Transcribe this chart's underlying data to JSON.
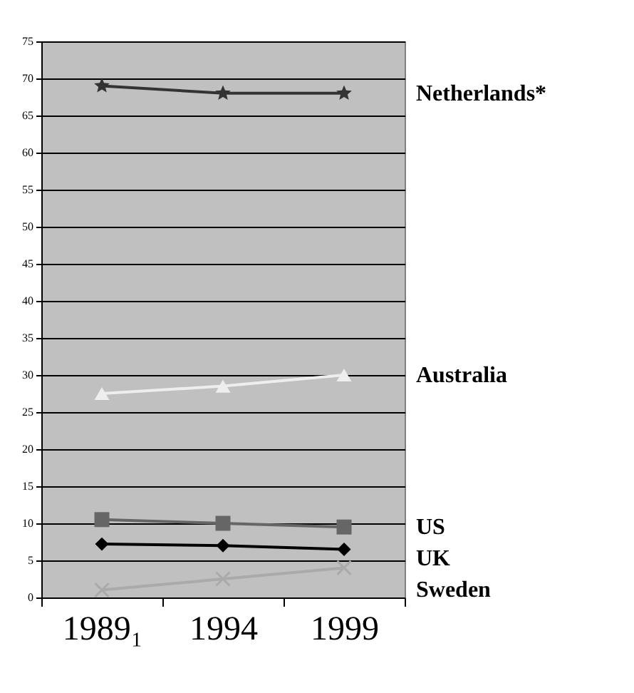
{
  "chart_data": {
    "type": "line",
    "categories": [
      "1989₁",
      "1994",
      "1999"
    ],
    "series": [
      {
        "name": "Netherlands*",
        "color": "#333333",
        "marker": "star",
        "values": [
          69,
          68,
          68
        ]
      },
      {
        "name": "Australia",
        "color": "#eeeeee",
        "marker": "triangle",
        "values": [
          27.5,
          28.5,
          30
        ]
      },
      {
        "name": "US",
        "color": "#666666",
        "marker": "square",
        "values": [
          10.5,
          10,
          9.5
        ]
      },
      {
        "name": "UK",
        "color": "#000000",
        "marker": "diamond",
        "values": [
          7.2,
          7,
          6.5
        ]
      },
      {
        "name": "Sweden",
        "color": "#aaaaaa",
        "marker": "cross",
        "values": [
          1,
          2.5,
          4
        ]
      }
    ],
    "ylim": [
      0,
      75
    ],
    "yticks": [
      0,
      5,
      10,
      15,
      20,
      25,
      30,
      35,
      40,
      45,
      50,
      55,
      60,
      65,
      70,
      75
    ],
    "grid": "y",
    "legend": false
  }
}
